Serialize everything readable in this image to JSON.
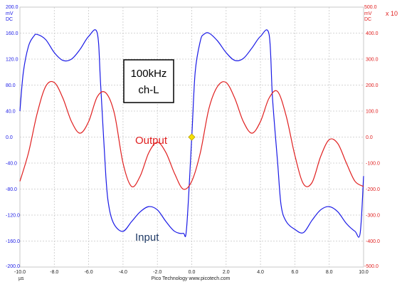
{
  "chart_data": {
    "type": "line",
    "title": "",
    "x_unit": "µs",
    "footer": "Pico Technology  www.picotech.com",
    "xlim": [
      -10,
      10
    ],
    "x_ticks": [
      "-10.0",
      "-8.0",
      "-6.0",
      "-4.0",
      "-2.0",
      "0.0",
      "2.0",
      "4.0",
      "6.0",
      "8.0",
      "10.0"
    ],
    "left_axis": {
      "unit_top": "200.0",
      "unit_lines": [
        "mV",
        "DC"
      ],
      "ylim": [
        -200,
        200
      ],
      "ticks": [
        "160.0",
        "120.0",
        "80.0",
        "40.0",
        "0.0",
        "-40.0",
        "-80.0",
        "-120.0",
        "-160.0"
      ],
      "bottom_label": "-200.0",
      "color": "#1a1ae6"
    },
    "right_axis": {
      "unit_top": "500.0",
      "unit_lines": [
        "mV",
        "DC"
      ],
      "multiplier": "x 10",
      "ylim": [
        -500,
        500
      ],
      "ticks": [
        "400.0",
        "300.0",
        "200.0",
        "100.0",
        "0.0",
        "-100.0",
        "-200.0",
        "-300.0",
        "-400.0"
      ],
      "bottom_label": "-500.0",
      "color": "#e02020"
    },
    "annotation_box": {
      "line1": "100kHz",
      "line2": "ch-L"
    },
    "series": [
      {
        "name": "Input",
        "color": "#1a1ae6",
        "axis": "left",
        "x": [
          -10,
          -9.8,
          -9.5,
          -9.2,
          -9.0,
          -8.5,
          -8.0,
          -7.5,
          -7.0,
          -6.5,
          -6.0,
          -5.5,
          -5.3,
          -5.0,
          -4.8,
          -4.5,
          -4.0,
          -3.5,
          -3.0,
          -2.5,
          -2.0,
          -1.5,
          -1.0,
          -0.5,
          -0.3,
          0.0,
          0.2,
          0.5,
          0.7,
          1.0,
          1.5,
          2.0,
          2.5,
          3.0,
          3.5,
          4.0,
          4.5,
          4.7,
          5.0,
          5.2,
          5.5,
          6.0,
          6.5,
          7.0,
          7.5,
          8.0,
          8.5,
          9.0,
          9.5,
          9.8,
          10.0
        ],
        "values": [
          40,
          100,
          140,
          155,
          158,
          150,
          130,
          118,
          120,
          135,
          155,
          160,
          80,
          -60,
          -110,
          -135,
          -145,
          -130,
          -115,
          -107,
          -112,
          -130,
          -145,
          -148,
          -140,
          0,
          100,
          148,
          158,
          160,
          148,
          130,
          118,
          121,
          137,
          155,
          158,
          60,
          -40,
          -105,
          -130,
          -142,
          -147,
          -128,
          -112,
          -107,
          -115,
          -133,
          -145,
          -148,
          -60
        ]
      },
      {
        "name": "Output",
        "color": "#e02020",
        "axis": "right",
        "x": [
          -10,
          -9.5,
          -9.0,
          -8.5,
          -8.0,
          -7.5,
          -7.0,
          -6.5,
          -6.0,
          -5.5,
          -5.0,
          -4.5,
          -4.0,
          -3.5,
          -3.0,
          -2.5,
          -2.0,
          -1.5,
          -1.0,
          -0.5,
          0.0,
          0.5,
          1.0,
          1.5,
          2.0,
          2.5,
          3.0,
          3.5,
          4.0,
          4.5,
          5.0,
          5.5,
          6.0,
          6.5,
          7.0,
          7.5,
          8.0,
          8.5,
          9.0,
          9.5,
          10.0
        ],
        "values": [
          -170,
          -60,
          90,
          195,
          210,
          150,
          60,
          15,
          60,
          155,
          170,
          90,
          -100,
          -190,
          -150,
          -60,
          -20,
          -60,
          -140,
          -200,
          -170,
          -60,
          110,
          195,
          210,
          150,
          60,
          15,
          60,
          150,
          175,
          80,
          -70,
          -180,
          -175,
          -75,
          -10,
          -25,
          -100,
          -170,
          -190
        ]
      }
    ],
    "labels": {
      "output": "Output",
      "input": "Input"
    },
    "trigger_marker": {
      "x": 0,
      "y": 0,
      "color": "#f5e000"
    },
    "grid": true
  }
}
